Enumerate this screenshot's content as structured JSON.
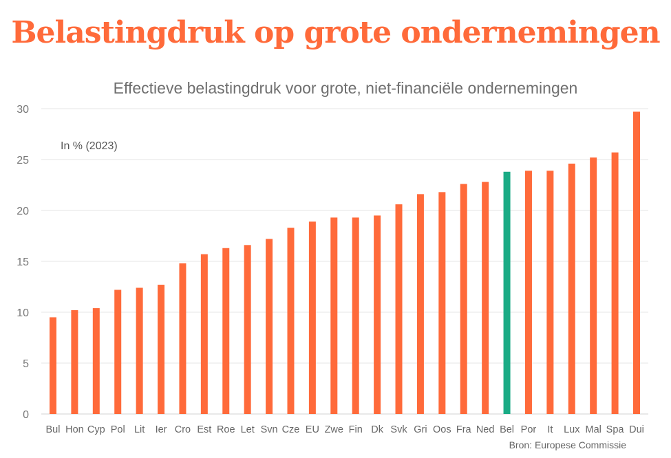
{
  "chart_data": {
    "type": "bar",
    "title": "Belastingdruk op grote ondernemingen",
    "subtitle": "Effectieve belastingdruk voor grote, niet-financiële ondernemingen",
    "note": "In % (2023)",
    "source": "Bron: Europese Commissie",
    "categories": [
      "Bul",
      "Hon",
      "Cyp",
      "Pol",
      "Lit",
      "Ier",
      "Cro",
      "Est",
      "Roe",
      "Let",
      "Svn",
      "Cze",
      "EU",
      "Zwe",
      "Fin",
      "Dk",
      "Svk",
      "Gri",
      "Oos",
      "Fra",
      "Ned",
      "Bel",
      "Por",
      "It",
      "Lux",
      "Mal",
      "Spa",
      "Dui"
    ],
    "values": [
      9.5,
      10.2,
      10.4,
      12.2,
      12.4,
      12.7,
      14.8,
      15.7,
      16.3,
      16.6,
      17.2,
      18.3,
      18.9,
      19.3,
      19.3,
      19.5,
      20.6,
      21.6,
      21.8,
      22.6,
      22.8,
      23.8,
      23.9,
      23.9,
      24.6,
      25.2,
      25.7,
      29.7
    ],
    "highlight_category": "Bel",
    "ylim": [
      0,
      30
    ],
    "yticks": [
      0,
      5,
      10,
      15,
      20,
      25,
      30
    ],
    "grid": true,
    "colors": {
      "bar": "#ff6a3a",
      "highlight": "#1aab85",
      "title": "#ff6a3a"
    }
  }
}
